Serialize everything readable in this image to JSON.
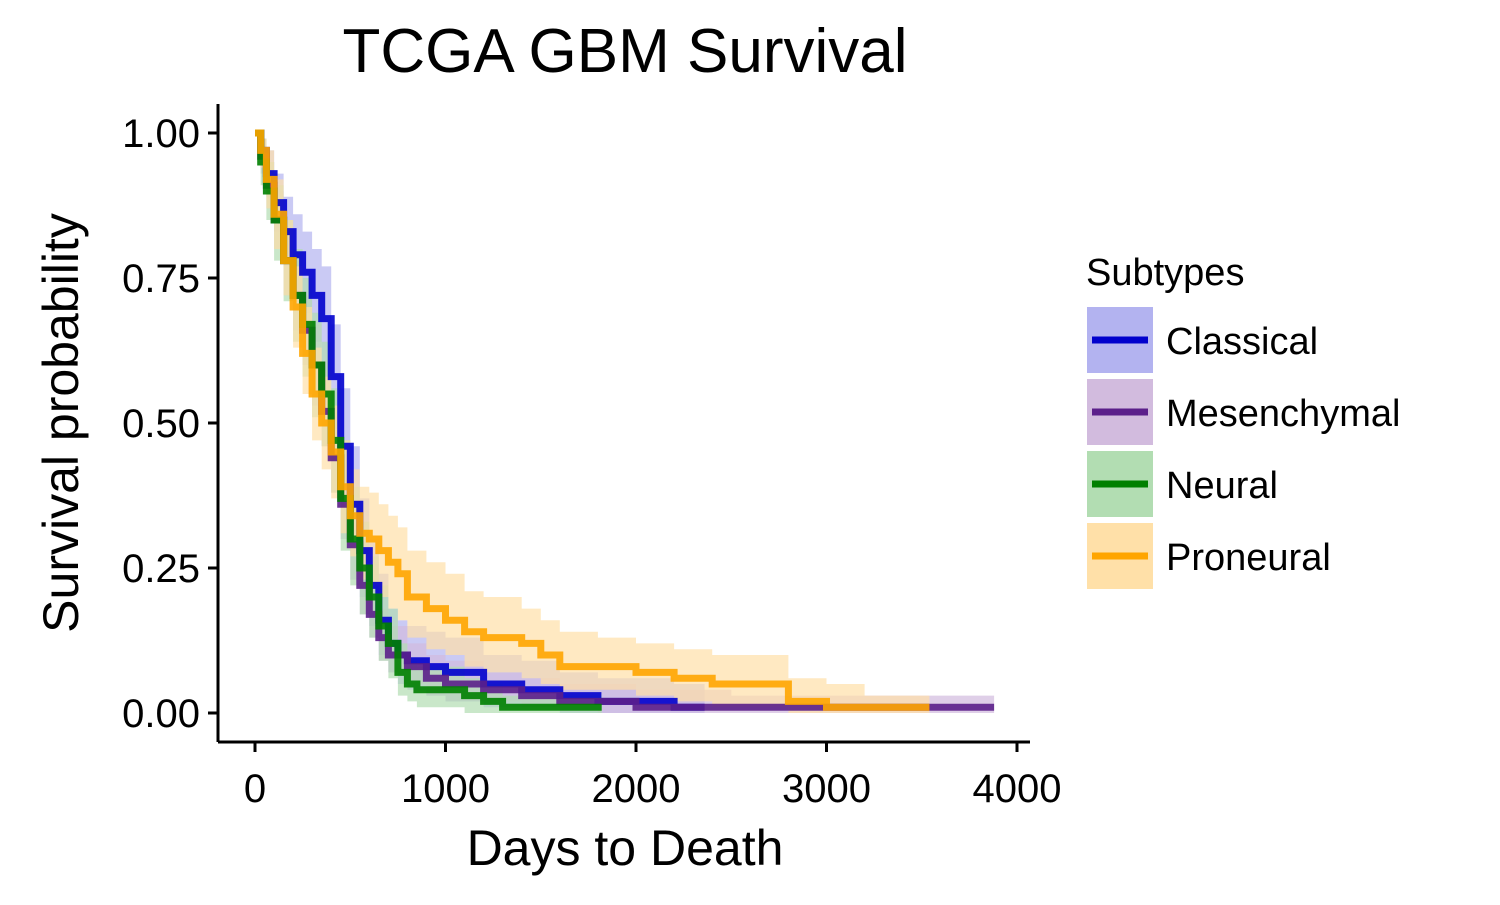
{
  "chart_data": {
    "type": "line",
    "subtype": "kaplan-meier step curves with confidence bands",
    "title": "TCGA GBM Survival",
    "xlabel": "Days to Death",
    "ylabel": "Survival probability",
    "xlim": [
      -200,
      4000
    ],
    "ylim": [
      -0.05,
      1.05
    ],
    "xticks": [
      0,
      1000,
      2000,
      3000,
      4000
    ],
    "xtick_labels": [
      "0",
      "1000",
      "2000",
      "3000",
      "4000"
    ],
    "yticks": [
      0,
      0.25,
      0.5,
      0.75,
      1.0
    ],
    "ytick_labels": [
      "0.00",
      "0.25",
      "0.50",
      "0.75",
      "1.00"
    ],
    "grid": false,
    "legend": {
      "title": "Subtypes",
      "position": "right"
    },
    "series": [
      {
        "name": "Classical",
        "color": "#0000CD",
        "band_color": "#B3B3F0",
        "x": [
          0,
          30,
          60,
          100,
          150,
          200,
          250,
          300,
          350,
          400,
          450,
          500,
          550,
          600,
          650,
          700,
          750,
          800,
          900,
          1000,
          1200,
          1400,
          1600,
          1800,
          2000,
          2200,
          2360
        ],
        "y": [
          1.0,
          0.97,
          0.93,
          0.88,
          0.83,
          0.79,
          0.76,
          0.72,
          0.68,
          0.58,
          0.46,
          0.36,
          0.28,
          0.22,
          0.16,
          0.12,
          0.1,
          0.09,
          0.08,
          0.07,
          0.05,
          0.04,
          0.03,
          0.02,
          0.02,
          0.01,
          0.01
        ],
        "lower": [
          1.0,
          0.94,
          0.89,
          0.83,
          0.77,
          0.72,
          0.69,
          0.64,
          0.59,
          0.49,
          0.37,
          0.28,
          0.2,
          0.15,
          0.1,
          0.07,
          0.05,
          0.04,
          0.03,
          0.02,
          0.01,
          0.01,
          0.0,
          0.0,
          0.0,
          0.0,
          0.0
        ],
        "upper": [
          1.0,
          0.99,
          0.97,
          0.93,
          0.89,
          0.86,
          0.83,
          0.8,
          0.77,
          0.67,
          0.56,
          0.46,
          0.37,
          0.3,
          0.24,
          0.18,
          0.16,
          0.15,
          0.14,
          0.13,
          0.1,
          0.09,
          0.07,
          0.06,
          0.06,
          0.05,
          0.05
        ]
      },
      {
        "name": "Mesenchymal",
        "color": "#5B1F8A",
        "band_color": "#D2BBDE",
        "x": [
          0,
          30,
          60,
          100,
          150,
          200,
          250,
          300,
          350,
          400,
          450,
          500,
          550,
          600,
          650,
          700,
          800,
          900,
          1000,
          1200,
          1400,
          1600,
          1800,
          2000,
          2500,
          3000,
          3500,
          3880
        ],
        "y": [
          1.0,
          0.96,
          0.91,
          0.85,
          0.78,
          0.72,
          0.66,
          0.6,
          0.52,
          0.44,
          0.36,
          0.29,
          0.22,
          0.17,
          0.13,
          0.1,
          0.08,
          0.06,
          0.05,
          0.04,
          0.03,
          0.02,
          0.02,
          0.01,
          0.01,
          0.01,
          0.01,
          0.01
        ],
        "lower": [
          1.0,
          0.93,
          0.87,
          0.8,
          0.72,
          0.66,
          0.6,
          0.53,
          0.46,
          0.38,
          0.3,
          0.23,
          0.17,
          0.13,
          0.09,
          0.07,
          0.05,
          0.03,
          0.02,
          0.02,
          0.01,
          0.01,
          0.0,
          0.0,
          0.0,
          0.0,
          0.0,
          0.0
        ],
        "upper": [
          1.0,
          0.99,
          0.95,
          0.9,
          0.84,
          0.78,
          0.72,
          0.67,
          0.59,
          0.51,
          0.43,
          0.36,
          0.28,
          0.23,
          0.18,
          0.15,
          0.12,
          0.1,
          0.09,
          0.07,
          0.06,
          0.05,
          0.05,
          0.04,
          0.03,
          0.03,
          0.03,
          0.03
        ]
      },
      {
        "name": "Neural",
        "color": "#008000",
        "band_color": "#B2DDB2",
        "x": [
          0,
          30,
          60,
          100,
          150,
          200,
          250,
          300,
          350,
          400,
          450,
          500,
          550,
          600,
          650,
          700,
          750,
          800,
          850,
          900,
          1000,
          1100,
          1200,
          1300,
          1500,
          1820
        ],
        "y": [
          1.0,
          0.95,
          0.9,
          0.85,
          0.78,
          0.72,
          0.67,
          0.6,
          0.55,
          0.47,
          0.37,
          0.3,
          0.25,
          0.2,
          0.15,
          0.12,
          0.07,
          0.05,
          0.04,
          0.04,
          0.04,
          0.03,
          0.02,
          0.01,
          0.01,
          0.01
        ],
        "lower": [
          1.0,
          0.91,
          0.85,
          0.78,
          0.71,
          0.64,
          0.58,
          0.51,
          0.46,
          0.38,
          0.28,
          0.22,
          0.17,
          0.13,
          0.09,
          0.06,
          0.03,
          0.02,
          0.01,
          0.01,
          0.01,
          0.0,
          0.0,
          0.0,
          0.0,
          0.0
        ],
        "upper": [
          1.0,
          0.99,
          0.95,
          0.91,
          0.85,
          0.8,
          0.75,
          0.69,
          0.64,
          0.56,
          0.47,
          0.39,
          0.33,
          0.27,
          0.22,
          0.18,
          0.12,
          0.09,
          0.08,
          0.08,
          0.08,
          0.06,
          0.05,
          0.03,
          0.03,
          0.03
        ]
      },
      {
        "name": "Proneural",
        "color": "#FFA500",
        "band_color": "#FFE0A8",
        "x": [
          0,
          30,
          60,
          100,
          150,
          200,
          250,
          300,
          350,
          400,
          450,
          500,
          550,
          600,
          650,
          700,
          750,
          800,
          850,
          900,
          1000,
          1100,
          1200,
          1400,
          1500,
          1600,
          1800,
          2000,
          2200,
          2400,
          2600,
          2800,
          3000,
          3200,
          3540
        ],
        "y": [
          1.0,
          0.97,
          0.92,
          0.86,
          0.78,
          0.7,
          0.62,
          0.55,
          0.5,
          0.45,
          0.39,
          0.34,
          0.31,
          0.3,
          0.28,
          0.26,
          0.24,
          0.2,
          0.2,
          0.18,
          0.16,
          0.14,
          0.13,
          0.12,
          0.1,
          0.08,
          0.08,
          0.07,
          0.06,
          0.05,
          0.05,
          0.02,
          0.01,
          0.01,
          0.01
        ],
        "lower": [
          1.0,
          0.94,
          0.87,
          0.8,
          0.72,
          0.63,
          0.55,
          0.47,
          0.42,
          0.37,
          0.31,
          0.27,
          0.23,
          0.22,
          0.2,
          0.18,
          0.16,
          0.13,
          0.13,
          0.11,
          0.1,
          0.08,
          0.07,
          0.06,
          0.05,
          0.04,
          0.04,
          0.03,
          0.02,
          0.01,
          0.01,
          0.0,
          0.0,
          0.0,
          0.0
        ],
        "upper": [
          1.0,
          0.99,
          0.97,
          0.92,
          0.85,
          0.77,
          0.7,
          0.63,
          0.58,
          0.53,
          0.47,
          0.42,
          0.39,
          0.38,
          0.36,
          0.34,
          0.32,
          0.28,
          0.28,
          0.26,
          0.24,
          0.21,
          0.2,
          0.18,
          0.16,
          0.14,
          0.13,
          0.12,
          0.11,
          0.1,
          0.1,
          0.06,
          0.05,
          0.03,
          0.03
        ]
      }
    ]
  }
}
